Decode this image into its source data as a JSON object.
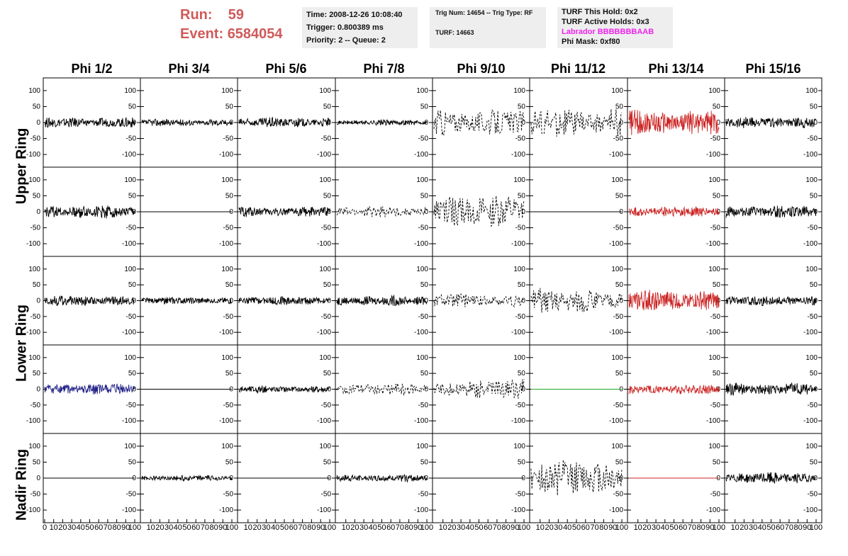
{
  "header": {
    "run_label": "Run:",
    "run_value": "59",
    "event_label": "Event:",
    "event_value": "6584054",
    "info_box": {
      "time": "Time: 2008-12-26 10:08:40",
      "trigger": "Trigger: 0.800389 ms",
      "priority": "Priority: 2 -- Queue: 2"
    },
    "trig_box": {
      "trig": "Trig Num: 14654 -- Trig Type: RF",
      "turf": "TURF: 14663"
    },
    "turf_box": {
      "this_hold": "TURF This Hold: 0x2",
      "active_holds": "TURF Active Holds: 0x3",
      "labrador": "Labrador BBBBBBBAAB",
      "phi_mask": "Phi Mask: 0xf80"
    }
  },
  "columns": [
    "Phi 1/2",
    "Phi 3/4",
    "Phi 5/6",
    "Phi 7/8",
    "Phi 9/10",
    "Phi 11/12",
    "Phi 13/14",
    "Phi 15/16"
  ],
  "rows": [
    "Upper Ring",
    "Lower Ring",
    "Nadir Ring"
  ],
  "y_ticks": [
    "100",
    "50",
    "0",
    "-50",
    "-100"
  ],
  "x_ticks": [
    "0",
    "10",
    "20",
    "30",
    "40",
    "50",
    "60",
    "70",
    "80",
    "90",
    "100"
  ],
  "colors": {
    "normal": "#000000",
    "red": "#cc2222",
    "blue": "#222288",
    "green": "#22aa22",
    "header_red": "#d05a5a",
    "labrador": "#ee22ee"
  },
  "panel_traces": [
    [
      {
        "c": "normal",
        "a": 14,
        "s": 1
      },
      {
        "c": "normal",
        "a": 10,
        "s": 2
      },
      {
        "c": "normal",
        "a": 14,
        "s": 3
      },
      {
        "c": "normal",
        "a": 8,
        "s": 4
      },
      {
        "c": "normal",
        "a": 40,
        "s": 5,
        "d": 1
      },
      {
        "c": "normal",
        "a": 45,
        "s": 6,
        "d": 1
      },
      {
        "c": "red",
        "a": 35,
        "s": 7
      },
      {
        "c": "normal",
        "a": 16,
        "s": 8
      }
    ],
    [
      {
        "c": "normal",
        "a": 18,
        "s": 11
      },
      {
        "c": "normal",
        "a": 0,
        "s": 12
      },
      {
        "c": "normal",
        "a": 14,
        "s": 13
      },
      {
        "c": "normal",
        "a": 15,
        "s": 14,
        "d": 1
      },
      {
        "c": "normal",
        "a": 45,
        "s": 15,
        "d": 1
      },
      {
        "c": "normal",
        "a": 0,
        "s": 16
      },
      {
        "c": "red",
        "a": 16,
        "s": 17
      },
      {
        "c": "normal",
        "a": 17,
        "s": 18
      }
    ],
    [
      {
        "c": "normal",
        "a": 14,
        "s": 21
      },
      {
        "c": "normal",
        "a": 10,
        "s": 22
      },
      {
        "c": "normal",
        "a": 12,
        "s": 23
      },
      {
        "c": "normal",
        "a": 14,
        "s": 24
      },
      {
        "c": "normal",
        "a": 20,
        "s": 25,
        "d": 1
      },
      {
        "c": "normal",
        "a": 35,
        "s": 26,
        "d": 1
      },
      {
        "c": "red",
        "a": 30,
        "s": 27
      },
      {
        "c": "normal",
        "a": 14,
        "s": 28
      }
    ],
    [
      {
        "c": "blue",
        "a": 16,
        "s": 31
      },
      {
        "c": "normal",
        "a": 0,
        "s": 32
      },
      {
        "c": "normal",
        "a": 10,
        "s": 33
      },
      {
        "c": "normal",
        "a": 16,
        "s": 34,
        "d": 1
      },
      {
        "c": "normal",
        "a": 28,
        "s": 35,
        "d": 1
      },
      {
        "c": "green",
        "a": 0,
        "s": 36
      },
      {
        "c": "red",
        "a": 14,
        "s": 37
      },
      {
        "c": "normal",
        "a": 18,
        "s": 38
      }
    ],
    [
      {
        "c": "normal",
        "a": 0,
        "s": 41
      },
      {
        "c": "normal",
        "a": 8,
        "s": 42
      },
      {
        "c": "normal",
        "a": 0,
        "s": 43
      },
      {
        "c": "normal",
        "a": 10,
        "s": 44
      },
      {
        "c": "normal",
        "a": 0,
        "s": 45
      },
      {
        "c": "normal",
        "a": 50,
        "s": 46,
        "d": 1
      },
      {
        "c": "red",
        "a": 0,
        "s": 47
      },
      {
        "c": "normal",
        "a": 16,
        "s": 48
      }
    ]
  ]
}
